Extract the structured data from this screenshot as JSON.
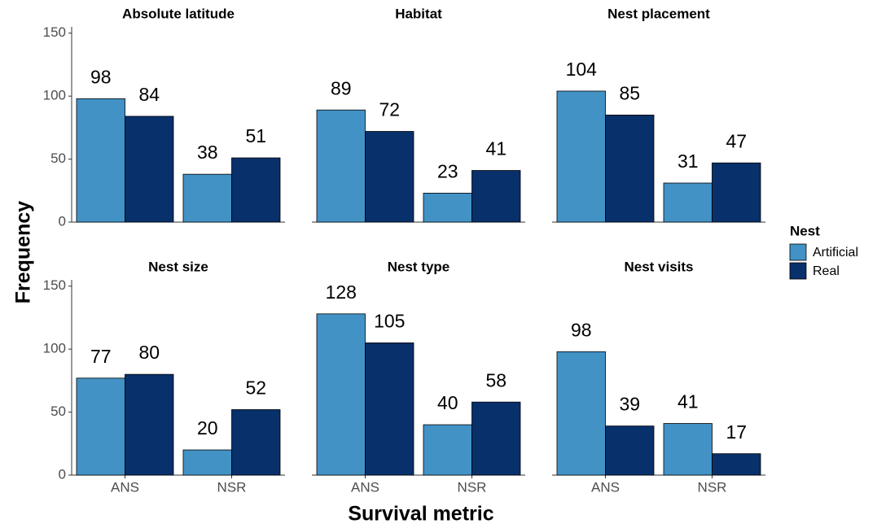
{
  "y_label": "Frequency",
  "x_label": "Survival metric",
  "legend_title": "Nest",
  "chart_data": [
    {
      "type": "bar",
      "title": "Absolute latitude",
      "categories": [
        null,
        null
      ],
      "series": [
        {
          "name": "Artificial",
          "color": "#4292c6",
          "values": [
            98,
            38
          ]
        },
        {
          "name": "Real",
          "color": "#08306b",
          "values": [
            84,
            51
          ]
        }
      ],
      "ylim": [
        0,
        155
      ],
      "yticks": [
        0,
        50,
        100,
        150
      ]
    },
    {
      "type": "bar",
      "title": "Habitat",
      "categories": [
        null,
        null
      ],
      "series": [
        {
          "name": "Artificial",
          "color": "#4292c6",
          "values": [
            89,
            23
          ]
        },
        {
          "name": "Real",
          "color": "#08306b",
          "values": [
            72,
            41
          ]
        }
      ],
      "ylim": [
        0,
        155
      ]
    },
    {
      "type": "bar",
      "title": "Nest placement",
      "categories": [
        null,
        null
      ],
      "series": [
        {
          "name": "Artificial",
          "color": "#4292c6",
          "values": [
            104,
            31
          ]
        },
        {
          "name": "Real",
          "color": "#08306b",
          "values": [
            85,
            47
          ]
        }
      ],
      "ylim": [
        0,
        155
      ]
    },
    {
      "type": "bar",
      "title": "Nest size",
      "categories": [
        "ANS",
        "NSR"
      ],
      "series": [
        {
          "name": "Artificial",
          "color": "#4292c6",
          "values": [
            77,
            20
          ]
        },
        {
          "name": "Real",
          "color": "#08306b",
          "values": [
            80,
            52
          ]
        }
      ],
      "ylim": [
        0,
        155
      ],
      "yticks": [
        0,
        50,
        100,
        150
      ]
    },
    {
      "type": "bar",
      "title": "Nest type",
      "categories": [
        "ANS",
        "NSR"
      ],
      "series": [
        {
          "name": "Artificial",
          "color": "#4292c6",
          "values": [
            128,
            40
          ]
        },
        {
          "name": "Real",
          "color": "#08306b",
          "values": [
            105,
            58
          ]
        }
      ],
      "ylim": [
        0,
        155
      ]
    },
    {
      "type": "bar",
      "title": "Nest visits",
      "categories": [
        "ANS",
        "NSR"
      ],
      "series": [
        {
          "name": "Artificial",
          "color": "#4292c6",
          "values": [
            98,
            41
          ]
        },
        {
          "name": "Real",
          "color": "#08306b",
          "values": [
            39,
            17
          ]
        }
      ],
      "ylim": [
        0,
        155
      ]
    }
  ]
}
